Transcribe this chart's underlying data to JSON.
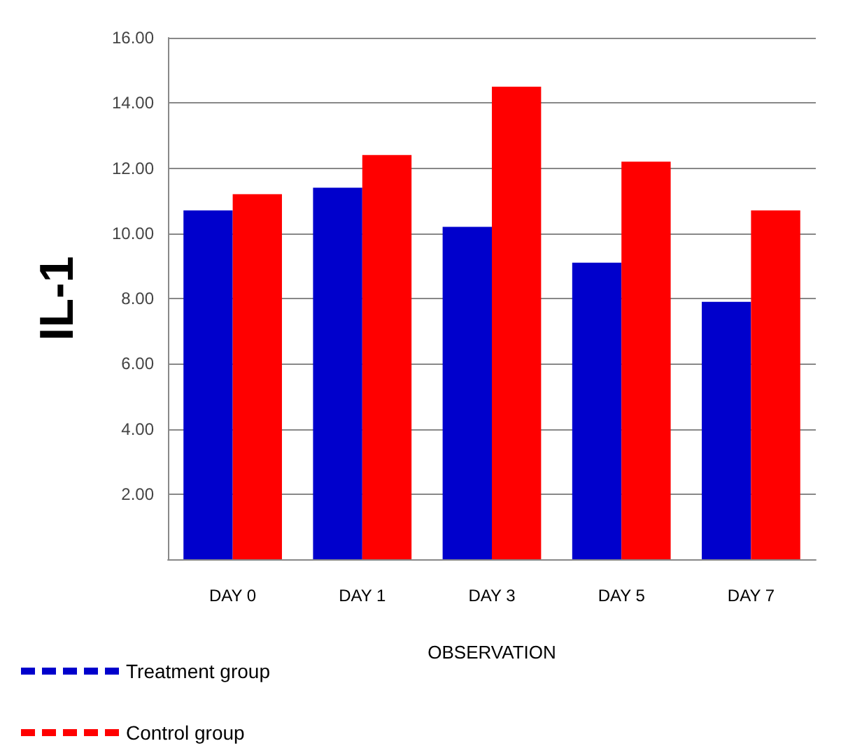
{
  "chart_data": {
    "type": "bar",
    "ylabel": "IL-1",
    "xlabel": "OBSERVATION",
    "categories": [
      "DAY 0",
      "DAY 1",
      "DAY 3",
      "DAY 5",
      "DAY 7"
    ],
    "series": [
      {
        "name": "Treatment group",
        "color": "#0000cc",
        "values": [
          10.7,
          11.4,
          10.2,
          9.1,
          7.9
        ]
      },
      {
        "name": "Control group",
        "color": "#ff0000",
        "values": [
          11.2,
          12.4,
          14.5,
          12.2,
          10.7
        ]
      }
    ],
    "ylim": [
      0,
      16
    ],
    "yticks": [
      {
        "value": 2,
        "label": "2.00"
      },
      {
        "value": 4,
        "label": "4.00"
      },
      {
        "value": 6,
        "label": "6.00"
      },
      {
        "value": 8,
        "label": "8.00"
      },
      {
        "value": 10,
        "label": "10.00"
      },
      {
        "value": 12,
        "label": "12.00"
      },
      {
        "value": 14,
        "label": "14.00"
      },
      {
        "value": 16,
        "label": "16.00"
      }
    ],
    "grid": "y",
    "legend": "bottom left"
  }
}
